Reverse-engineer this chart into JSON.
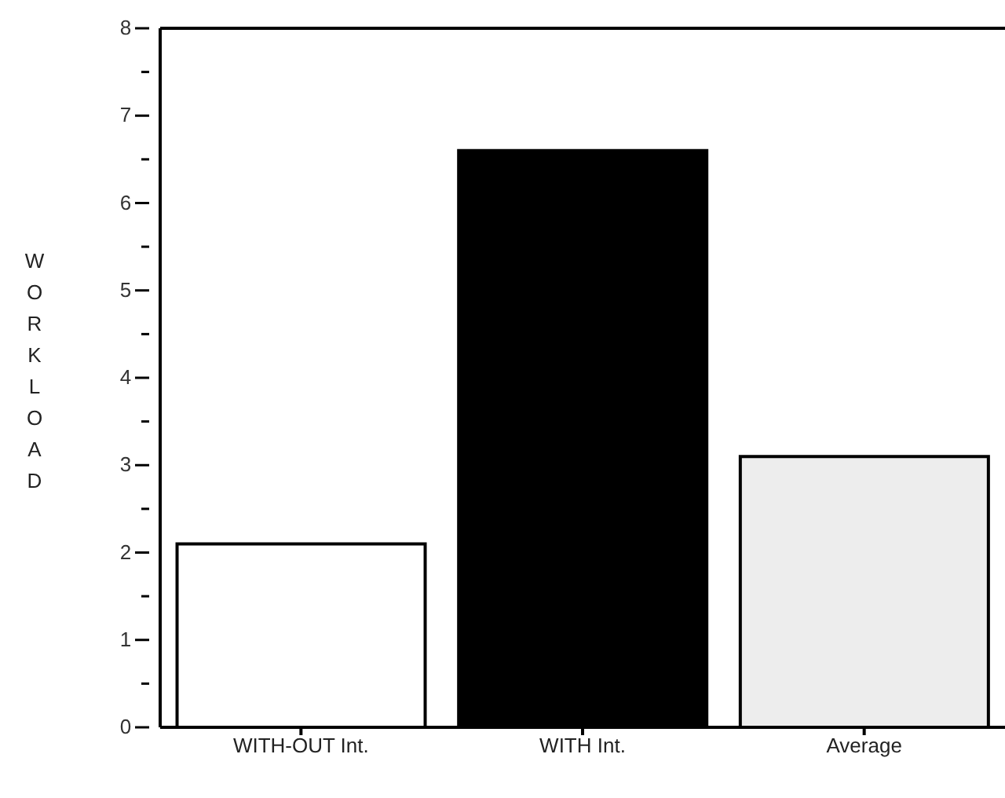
{
  "chart_data": {
    "type": "bar",
    "ylabel": "WORKLOAD",
    "categories": [
      "WITH-OUT Int.",
      "WITH Int.",
      "Average"
    ],
    "values": [
      2.1,
      6.6,
      3.1
    ],
    "colors": [
      "#ffffff",
      "#000000",
      "#ededed"
    ],
    "ylim": [
      0,
      8
    ],
    "yticks": [
      0,
      {
        "value": 0.5,
        "label": null
      },
      1,
      {
        "value": 1.5,
        "label": null
      },
      2,
      {
        "value": 2.5,
        "label": null
      },
      3,
      {
        "value": 3.5,
        "label": null
      },
      4,
      {
        "value": 4.5,
        "label": null
      },
      5,
      {
        "value": 5.5,
        "label": null
      },
      6,
      {
        "value": 6.5,
        "label": null
      },
      7,
      {
        "value": 7.5,
        "label": null
      },
      8
    ],
    "grid": false,
    "legend": false
  }
}
